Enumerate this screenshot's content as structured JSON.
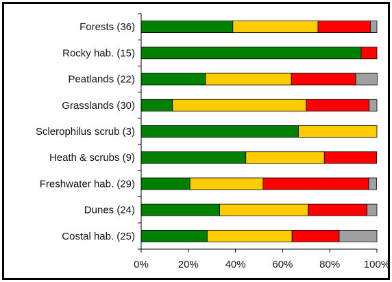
{
  "chart_data": {
    "type": "bar",
    "orientation": "horizontal",
    "stacked": true,
    "categories": [
      "Forests (36)",
      "Rocky hab. (15)",
      "Peatlands (22)",
      "Grasslands (30)",
      "Sclerophilus scrub (3)",
      "Heath & scrubs (9)",
      "Freshwater hab. (29)",
      "Dunes (24)",
      "Costal hab. (25)"
    ],
    "series": [
      {
        "color": "#008000",
        "values": [
          38.9,
          93.3,
          27.3,
          13.3,
          66.7,
          44.4,
          20.7,
          33.3,
          28.0
        ]
      },
      {
        "color": "#ffcc00",
        "values": [
          36.1,
          0,
          36.4,
          56.7,
          33.3,
          33.3,
          31.0,
          37.5,
          36.0
        ]
      },
      {
        "color": "#ff0000",
        "values": [
          22.2,
          6.7,
          27.3,
          26.7,
          0,
          22.2,
          44.8,
          25.0,
          20.0
        ]
      },
      {
        "color": "#a0a0a0",
        "values": [
          2.8,
          0,
          9.1,
          3.3,
          0,
          0,
          3.4,
          4.2,
          16.0
        ]
      }
    ],
    "xticks": [
      "0%",
      "20%",
      "40%",
      "60%",
      "80%",
      "100%"
    ],
    "xlim": [
      0,
      100
    ],
    "grid": false,
    "legend": "none"
  }
}
